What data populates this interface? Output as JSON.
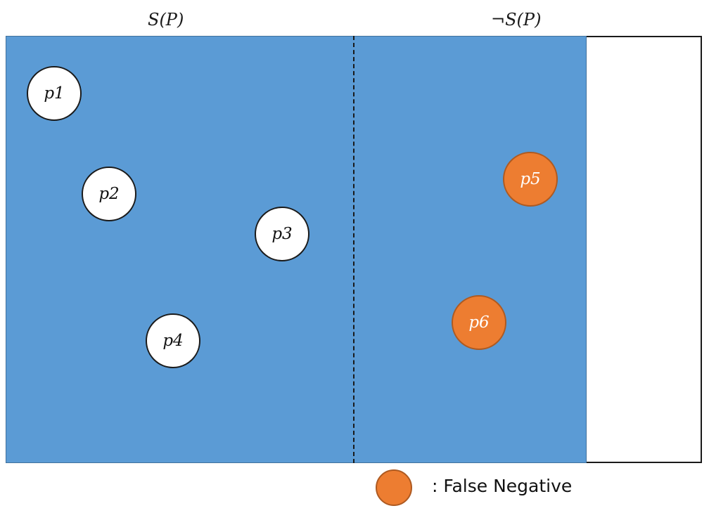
{
  "regions": {
    "left_label": "S(P)",
    "right_label": "¬S(P)"
  },
  "nodes": [
    {
      "label": "p1",
      "category": "normal"
    },
    {
      "label": "p2",
      "category": "normal"
    },
    {
      "label": "p3",
      "category": "normal"
    },
    {
      "label": "p4",
      "category": "normal"
    },
    {
      "label": "p5",
      "category": "false-negative"
    },
    {
      "label": "p6",
      "category": "false-negative"
    }
  ],
  "legend": {
    "false_negative_label": ": False Negative"
  },
  "colors": {
    "region_fill": "#5b9bd5",
    "false_negative": "#ed7d31",
    "normal_node": "#ffffff"
  }
}
